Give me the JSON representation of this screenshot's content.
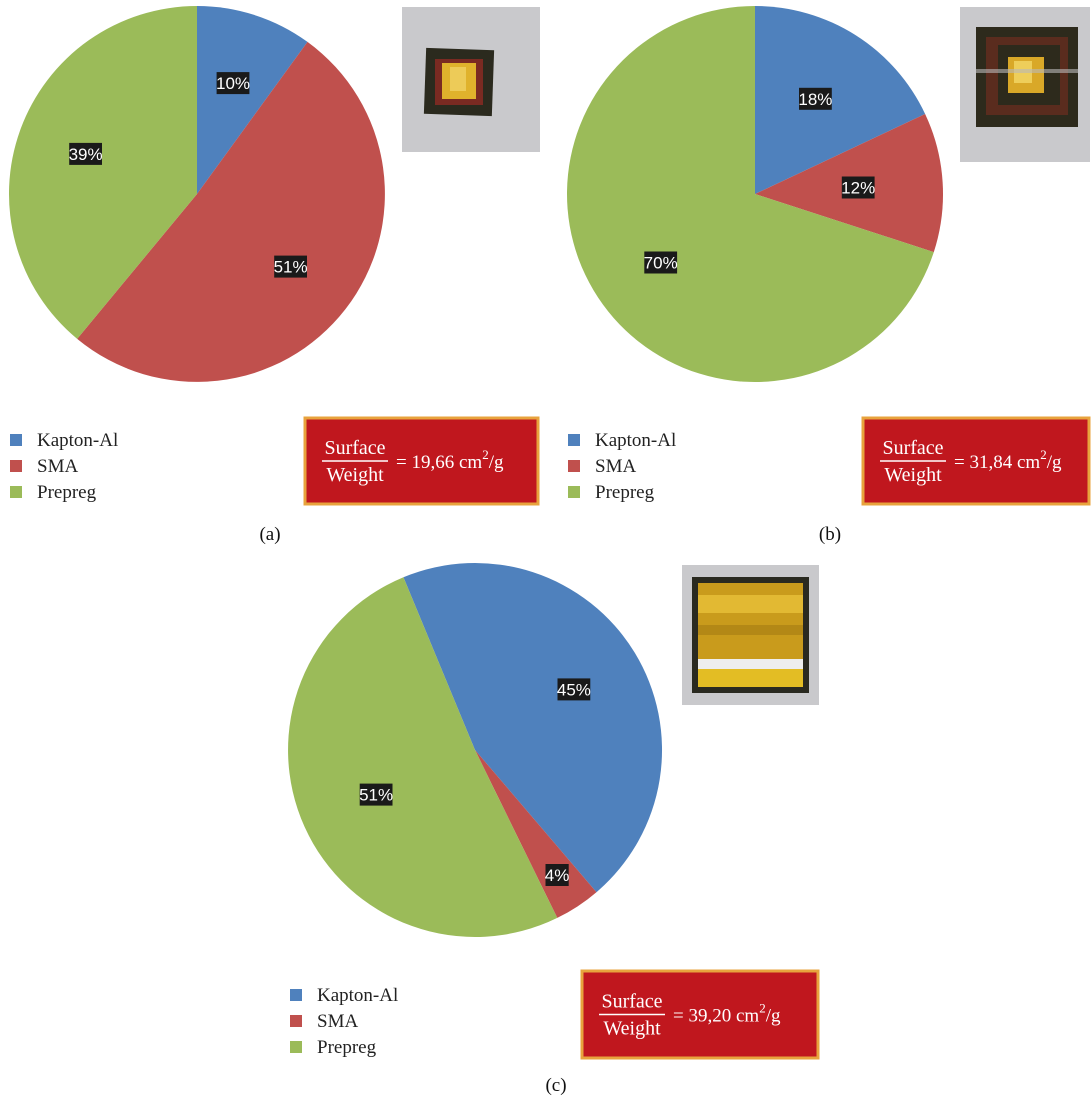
{
  "colors": {
    "Kapton-Al": "#4F81BD",
    "SMA": "#C0504D",
    "Prepreg": "#9BBB59",
    "ratio_box_fill": "#C0171E",
    "ratio_box_border": "#E8A33D",
    "label_bg": "#1a1a1a"
  },
  "chart_data": [
    {
      "type": "pie",
      "panel": "(a)",
      "categories": [
        "Kapton-Al",
        "SMA",
        "Prepreg"
      ],
      "values": [
        10,
        51,
        39
      ],
      "labels": [
        "10%",
        "51%",
        "39%"
      ],
      "legend": [
        "Kapton-Al",
        "SMA",
        "Prepreg"
      ],
      "legend_position": "bottom-left",
      "ratio": {
        "numerator": "Surface",
        "denominator": "Weight",
        "value": "= 19,66 cm",
        "exponent": "2",
        "unit": "/g"
      },
      "photo_icon": "sample-photo-frame-square"
    },
    {
      "type": "pie",
      "panel": "(b)",
      "categories": [
        "Kapton-Al",
        "SMA",
        "Prepreg"
      ],
      "values": [
        18,
        12,
        70
      ],
      "labels": [
        "18%",
        "12%",
        "70%"
      ],
      "legend": [
        "Kapton-Al",
        "SMA",
        "Prepreg"
      ],
      "legend_position": "bottom-left",
      "ratio": {
        "numerator": "Surface",
        "denominator": "Weight",
        "value": "= 31,84 cm",
        "exponent": "2",
        "unit": "/g"
      },
      "photo_icon": "sample-photo-overlapping-frame"
    },
    {
      "type": "pie",
      "panel": "(c)",
      "categories": [
        "Kapton-Al",
        "SMA",
        "Prepreg"
      ],
      "values": [
        45,
        4,
        51
      ],
      "labels": [
        "45%",
        "4%",
        "51%"
      ],
      "legend": [
        "Kapton-Al",
        "SMA",
        "Prepreg"
      ],
      "legend_position": "bottom-left",
      "ratio": {
        "numerator": "Surface",
        "denominator": "Weight",
        "value": "= 39,20 cm",
        "exponent": "2",
        "unit": "/g"
      },
      "photo_icon": "sample-photo-full-foil"
    }
  ]
}
